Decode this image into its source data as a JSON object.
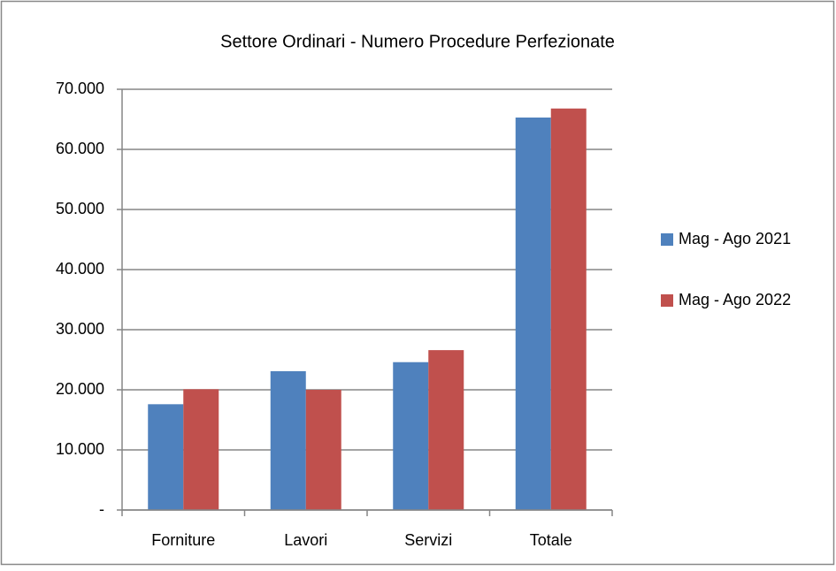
{
  "chart_data": {
    "type": "bar",
    "title": "Settore Ordinari - Numero Procedure Perfezionate",
    "categories": [
      "Forniture",
      "Lavori",
      "Servizi",
      "Totale"
    ],
    "series": [
      {
        "name": "Mag - Ago 2021",
        "color": "#4f81bd",
        "values": [
          17600,
          23100,
          24600,
          65300
        ]
      },
      {
        "name": "Mag - Ago 2022",
        "color": "#c0504d",
        "values": [
          20100,
          20000,
          26600,
          66800
        ]
      }
    ],
    "ylim": [
      0,
      70000
    ],
    "yticks": [
      {
        "value": 0,
        "label": "-"
      },
      {
        "value": 10000,
        "label": "10.000"
      },
      {
        "value": 20000,
        "label": "20.000"
      },
      {
        "value": 30000,
        "label": "30.000"
      },
      {
        "value": 40000,
        "label": "40.000"
      },
      {
        "value": 50000,
        "label": "50.000"
      },
      {
        "value": 60000,
        "label": "60.000"
      },
      {
        "value": 70000,
        "label": "70.000"
      }
    ],
    "grid": true,
    "legend": "right"
  }
}
